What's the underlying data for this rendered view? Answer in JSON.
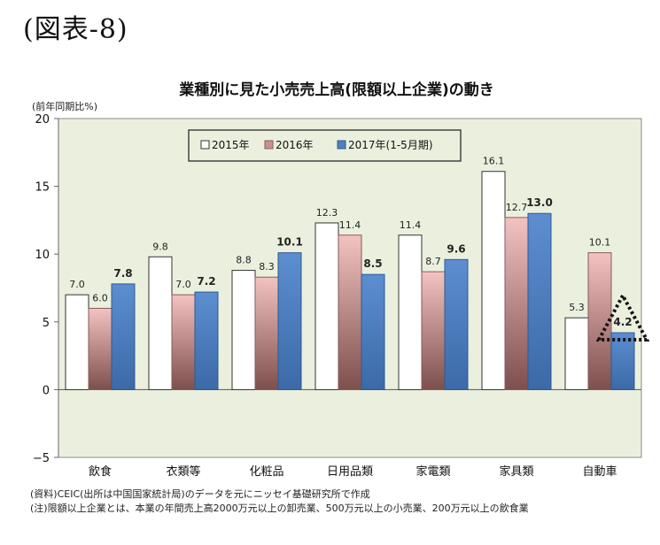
{
  "figure_label": "(図表-8)",
  "chart_data": {
    "type": "bar",
    "title": "業種別に見た小売売上高(限額以上企業)の動き",
    "ylabel": "(前年同期比%)",
    "xlabel": "",
    "ylim": [
      -5,
      20
    ],
    "yticks": [
      -5,
      0,
      5,
      10,
      15,
      20
    ],
    "grid": false,
    "legend_position": "top-center",
    "categories": [
      "飲食",
      "衣類等",
      "化粧品",
      "日用品類",
      "家電類",
      "家具類",
      "自動車"
    ],
    "series": [
      {
        "name": "2015年",
        "values": [
          7.0,
          9.8,
          8.8,
          12.3,
          11.4,
          16.1,
          5.3
        ],
        "color": "#ffffff",
        "label_bold": false
      },
      {
        "name": "2016年",
        "values": [
          6.0,
          7.0,
          8.3,
          11.4,
          8.7,
          12.7,
          10.1
        ],
        "color": "#c9908e",
        "label_bold": false
      },
      {
        "name": "2017年(1-5月期)",
        "values": [
          7.8,
          7.2,
          10.1,
          8.5,
          9.6,
          13.0,
          4.2
        ],
        "color": "#4f7fc0",
        "label_bold": true
      }
    ],
    "value_labels": {
      "2015年": [
        "7.0",
        "9.8",
        "8.8",
        "12.3",
        "11.4",
        "16.1",
        "5.3"
      ],
      "2016年": [
        "6.0",
        "7.0",
        "8.3",
        "11.4",
        "8.7",
        "12.7",
        "10.1"
      ],
      "2017年(1-5月期)": [
        "7.8",
        "7.2",
        "10.1",
        "8.5",
        "9.6",
        "13.0",
        "4.2"
      ]
    },
    "highlight": {
      "category": "自動車",
      "series": "2017年(1-5月期)",
      "shape": "dotted-triangle"
    },
    "plot_background": "#ebf0de"
  },
  "notes": {
    "source": "(資料)CEIC(出所は中国国家統計局)のデータを元にニッセイ基礎研究所で作成",
    "remark": "(注)限額以上企業とは、本業の年間売上高2000万元以上の卸売業、500万元以上の小売業、200万元以上の飲食業"
  }
}
